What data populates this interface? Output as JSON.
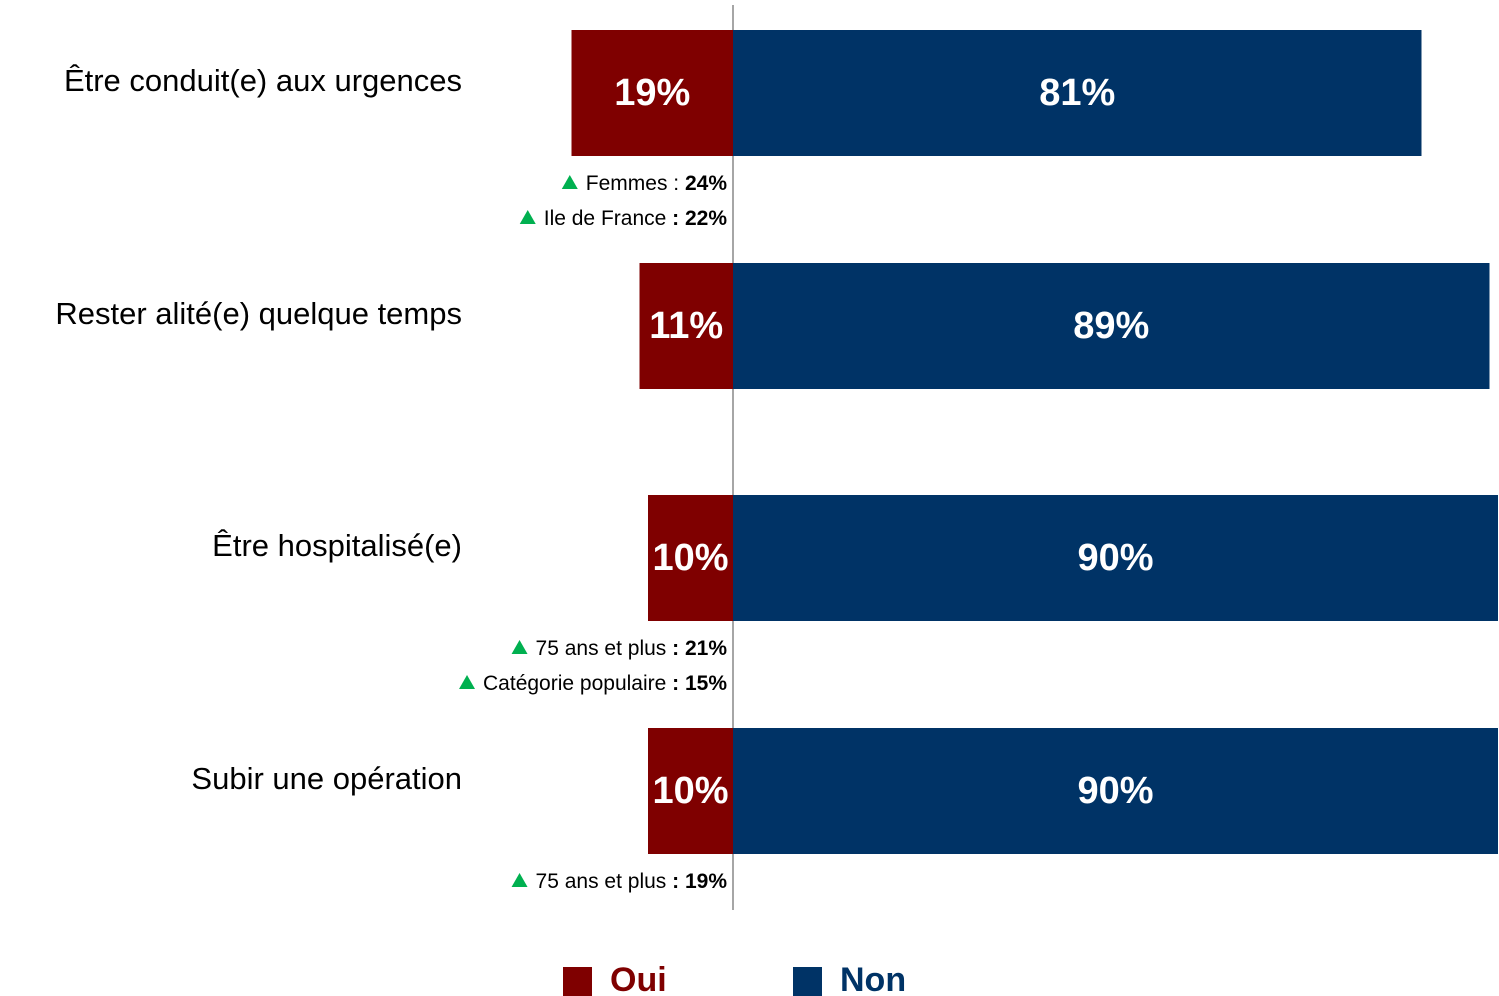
{
  "chart_data": {
    "type": "diverging-bar",
    "categories": [
      "Être conduit(e) aux urgences",
      "Rester alité(e) quelque temps",
      "Être hospitalisé(e)",
      "Subir une opération"
    ],
    "series": [
      {
        "name": "Oui",
        "color": "#7f0000",
        "values": [
          19,
          11,
          10,
          10
        ],
        "value_labels": [
          "19%",
          "11%",
          "10%",
          "10%"
        ]
      },
      {
        "name": "Non",
        "color": "#003366",
        "values": [
          81,
          89,
          90,
          90
        ],
        "value_labels": [
          "81%",
          "89%",
          "90%",
          "90%"
        ]
      }
    ],
    "annotations": [
      [
        {
          "text": "Femmes : ",
          "bold": "24%"
        },
        {
          "text": "Ile de France ",
          "bold": ": 22%"
        }
      ],
      [],
      [
        {
          "text": "75 ans et plus ",
          "bold": ": 21%"
        },
        {
          "text": "Catégorie populaire ",
          "bold": ": 15%"
        }
      ],
      [
        {
          "text": "75 ans et plus ",
          "bold": ": 19%"
        }
      ]
    ],
    "annotation_color": "#00b050",
    "legend": "bottom"
  }
}
